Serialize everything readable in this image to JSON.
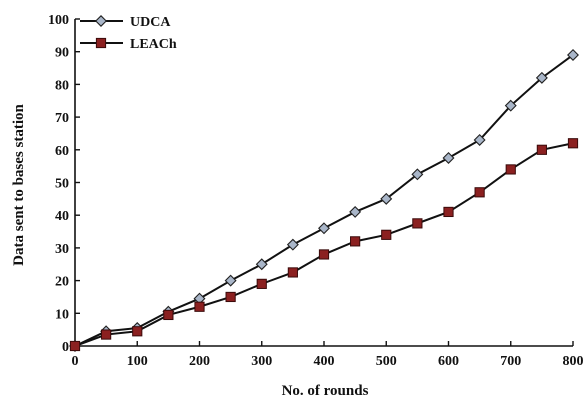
{
  "chart_data": {
    "type": "line",
    "title": "",
    "xlabel": "No. of rounds",
    "ylabel": "Data sent to bases station",
    "xlim": [
      0,
      800
    ],
    "ylim": [
      0,
      100
    ],
    "xticks": [
      0,
      100,
      200,
      300,
      400,
      500,
      600,
      700,
      800
    ],
    "yticks": [
      0,
      10,
      20,
      30,
      40,
      50,
      60,
      70,
      80,
      90,
      100
    ],
    "grid": false,
    "legend_position": "top-left",
    "x": [
      0,
      50,
      100,
      150,
      200,
      250,
      300,
      350,
      400,
      450,
      500,
      550,
      600,
      650,
      700,
      750,
      800
    ],
    "series": [
      {
        "name": "UDCA",
        "marker": "diamond",
        "marker_fill": "#a9b6c9",
        "line_color": "#111111",
        "values": [
          0,
          4.5,
          5.5,
          10.5,
          14.5,
          20,
          25,
          31,
          36,
          41,
          45,
          52.5,
          57.5,
          63,
          73.5,
          82,
          89
        ]
      },
      {
        "name": "LEACh",
        "marker": "square",
        "marker_fill": "#8b2020",
        "line_color": "#111111",
        "values": [
          0,
          3.5,
          4.5,
          9.5,
          12,
          15,
          19,
          22.5,
          28,
          32,
          34,
          37.5,
          41,
          47,
          54,
          60,
          62
        ]
      }
    ]
  }
}
